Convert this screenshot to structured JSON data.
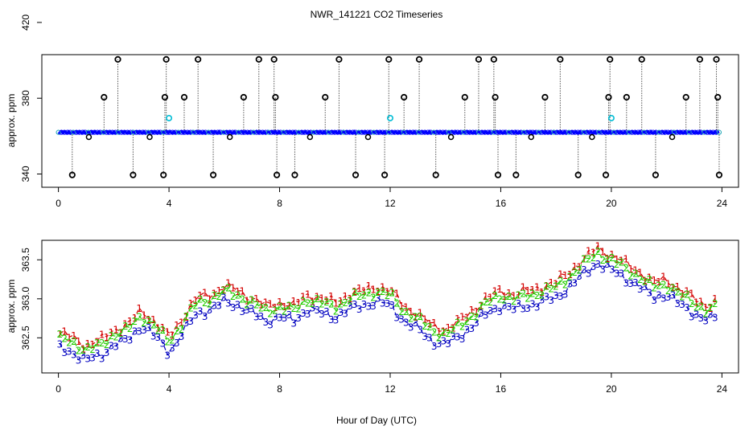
{
  "title": "NWR_141221  CO2 Timeseries",
  "xlabel": "Hour of Day (UTC)",
  "colors": {
    "flag_outlier": "#000000",
    "flag_mid": "#00bcd4",
    "series1": "#d40000",
    "series2": "#22cc00",
    "series3": "#0000c0",
    "trace": "#0000ff"
  },
  "chart_data": [
    {
      "type": "scatter",
      "title": "",
      "xlabel": "",
      "ylabel": "approx. ppm",
      "xlim": [
        -0.6,
        24.6
      ],
      "ylim": [
        333,
        403
      ],
      "xticks": [
        0,
        4,
        8,
        12,
        16,
        20,
        24
      ],
      "yticks": [
        340,
        380,
        420
      ],
      "baseline_ppm": 362,
      "baseline_hours": [
        0.0,
        23.9
      ],
      "high_outliers": [
        [
          2.15,
          400.5
        ],
        [
          3.9,
          400.5
        ],
        [
          5.05,
          400.5
        ],
        [
          7.25,
          400.5
        ],
        [
          7.8,
          400.5
        ],
        [
          10.15,
          400.5
        ],
        [
          11.95,
          400.5
        ],
        [
          13.05,
          400.5
        ],
        [
          15.2,
          400.5
        ],
        [
          15.75,
          400.5
        ],
        [
          18.15,
          400.5
        ],
        [
          19.95,
          400.5
        ],
        [
          21.1,
          400.5
        ],
        [
          23.2,
          400.5
        ],
        [
          23.8,
          400.5
        ]
      ],
      "mid_outliers": [
        [
          1.65,
          380.5
        ],
        [
          3.85,
          380.5
        ],
        [
          4.55,
          380.5
        ],
        [
          6.7,
          380.5
        ],
        [
          7.85,
          380.5
        ],
        [
          9.65,
          380.5
        ],
        [
          12.5,
          380.5
        ],
        [
          14.7,
          380.5
        ],
        [
          15.8,
          380.5
        ],
        [
          17.6,
          380.5
        ],
        [
          19.9,
          380.5
        ],
        [
          20.55,
          380.5
        ],
        [
          22.7,
          380.5
        ],
        [
          23.85,
          380.5
        ]
      ],
      "low_outliers": [
        [
          0.5,
          339.5
        ],
        [
          2.7,
          339.5
        ],
        [
          3.8,
          339.5
        ],
        [
          5.6,
          339.5
        ],
        [
          7.9,
          339.5
        ],
        [
          8.55,
          339.5
        ],
        [
          10.75,
          339.5
        ],
        [
          11.8,
          339.5
        ],
        [
          13.65,
          339.5
        ],
        [
          15.9,
          339.5
        ],
        [
          16.55,
          339.5
        ],
        [
          18.8,
          339.5
        ],
        [
          19.8,
          339.5
        ],
        [
          21.6,
          339.5
        ],
        [
          23.9,
          339.5
        ]
      ],
      "small_dips": [
        [
          1.1,
          359.5
        ],
        [
          3.3,
          359.5
        ],
        [
          6.2,
          359.5
        ],
        [
          9.1,
          359.5
        ],
        [
          11.2,
          359.5
        ],
        [
          14.2,
          359.5
        ],
        [
          17.1,
          359.5
        ],
        [
          19.3,
          359.5
        ],
        [
          22.2,
          359.5
        ]
      ],
      "cyan_flags": [
        [
          4.0,
          369.5
        ],
        [
          12.0,
          369.5
        ],
        [
          20.0,
          369.5
        ]
      ]
    },
    {
      "type": "line",
      "title": "",
      "xlabel": "Hour of Day (UTC)",
      "ylabel": "approx. ppm",
      "xlim": [
        -0.6,
        24.6
      ],
      "ylim": [
        362.05,
        363.75
      ],
      "xticks": [
        0,
        4,
        8,
        12,
        16,
        20,
        24
      ],
      "yticks": [
        362.5,
        363.0,
        363.5
      ],
      "ytick_labels": [
        "362.5",
        "363.0",
        "363.5"
      ],
      "series": [
        {
          "name": "1",
          "marker": "1",
          "offset": 0.06
        },
        {
          "name": "2",
          "marker": "2",
          "offset": 0.0
        },
        {
          "name": "3",
          "marker": "3",
          "offset": -0.13
        }
      ],
      "series2_anchor_hours": [
        0,
        0.5,
        1,
        1.5,
        2,
        2.5,
        3,
        3.5,
        4,
        4.5,
        5,
        5.5,
        6,
        6.5,
        7,
        7.5,
        8,
        8.5,
        9,
        9.5,
        10,
        10.5,
        11,
        11.5,
        12,
        12.5,
        13,
        13.5,
        14,
        14.5,
        15,
        15.5,
        16,
        16.5,
        17,
        17.5,
        18,
        18.5,
        19,
        19.5,
        20,
        20.5,
        21,
        21.5,
        22,
        22.5,
        23,
        23.5,
        23.75
      ],
      "series2_anchor_ppm": [
        362.5,
        362.45,
        362.35,
        362.4,
        362.55,
        362.6,
        362.8,
        362.65,
        362.45,
        362.7,
        362.95,
        363.0,
        363.1,
        363.05,
        362.95,
        362.85,
        362.9,
        362.85,
        363.0,
        362.95,
        362.9,
        363.0,
        363.05,
        363.1,
        363.05,
        362.85,
        362.75,
        362.6,
        362.55,
        362.65,
        362.8,
        362.95,
        363.05,
        363.0,
        363.05,
        363.1,
        363.15,
        363.3,
        363.45,
        363.6,
        363.5,
        363.4,
        363.3,
        363.15,
        363.2,
        363.05,
        362.95,
        362.85,
        362.9
      ]
    }
  ]
}
